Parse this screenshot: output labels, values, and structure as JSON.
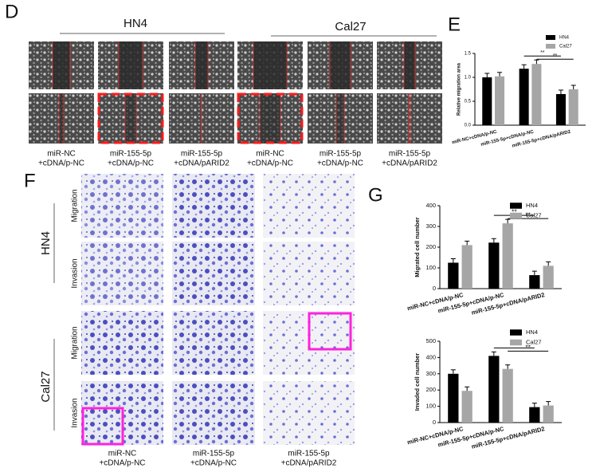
{
  "panel_labels": [
    "D",
    "E",
    "F",
    "G"
  ],
  "panel_d": {
    "groups": [
      "HN4",
      "Cal27"
    ],
    "captions": [
      [
        "miR-NC",
        "+cDNA/p-NC"
      ],
      [
        "miR-155-5p",
        "+cDNA/p-NC"
      ],
      [
        "miR-155-5p",
        "+cDNA/pARID2"
      ],
      [
        "miR-NC",
        "+cDNA/p-NC"
      ],
      [
        "miR-155-5p",
        "+cDNA/p-NC"
      ],
      [
        "miR-155-5p",
        "+cDNA/pARID2"
      ]
    ]
  },
  "panel_f": {
    "groups": [
      "HN4",
      "Cal27"
    ],
    "rows": [
      "Migration",
      "Invasion",
      "Migration",
      "Invasion"
    ],
    "captions": [
      [
        "miR-NC",
        "+cDNA/p-NC"
      ],
      [
        "miR-155-5p",
        "+cDNA/p-NC"
      ],
      [
        "miR-155-5p",
        "+cDNA/pARID2"
      ]
    ]
  },
  "chart_data": [
    {
      "type": "bar",
      "ylabel": "Relative migration area",
      "categories": [
        "miR-NC+cDNA/p-NC",
        "miR-155-5p+cDNA/p-NC",
        "miR-155-5p+cDNA/pARID2"
      ],
      "series": [
        {
          "name": "HN4",
          "color": "#000000",
          "values": [
            1.0,
            1.18,
            0.65
          ]
        },
        {
          "name": "Cal27",
          "color": "#a6a6a6",
          "values": [
            1.02,
            1.28,
            0.75
          ]
        }
      ],
      "ylim": [
        0,
        1.5
      ],
      "yticks": [
        {
          "value": 0,
          "label": "0.0"
        },
        0.5,
        {
          "value": 1,
          "label": "1.0"
        },
        1.5
      ],
      "annotations": [
        "**",
        "**"
      ]
    },
    {
      "type": "bar",
      "ylabel": "Migrated cell number",
      "categories": [
        "miR-NC+cDNA/p-NC",
        "miR-155-5p+cDNA/p-NC",
        "miR-155-5p+cDNA/pARID2"
      ],
      "series": [
        {
          "name": "HN4",
          "color": "#000000",
          "values": [
            125,
            222,
            65
          ]
        },
        {
          "name": "Cal27",
          "color": "#a6a6a6",
          "values": [
            210,
            315,
            110
          ]
        }
      ],
      "ylim": [
        0,
        400
      ],
      "yticks": [
        0,
        100,
        200,
        300,
        400
      ],
      "annotations": [
        "**",
        "**"
      ]
    },
    {
      "type": "bar",
      "ylabel": "Invaded cell number",
      "categories": [
        "miR-NC+cDNA/p-NC",
        "miR-155-5p+cDNA/p-NC",
        "miR-155-5p+cDNA/pARID2"
      ],
      "series": [
        {
          "name": "HN4",
          "color": "#000000",
          "values": [
            300,
            410,
            95
          ]
        },
        {
          "name": "Cal27",
          "color": "#a6a6a6",
          "values": [
            195,
            330,
            105
          ]
        }
      ],
      "ylim": [
        0,
        500
      ],
      "yticks": [
        0,
        100,
        200,
        300,
        400,
        500
      ],
      "annotations": [
        "**",
        "**"
      ]
    }
  ]
}
